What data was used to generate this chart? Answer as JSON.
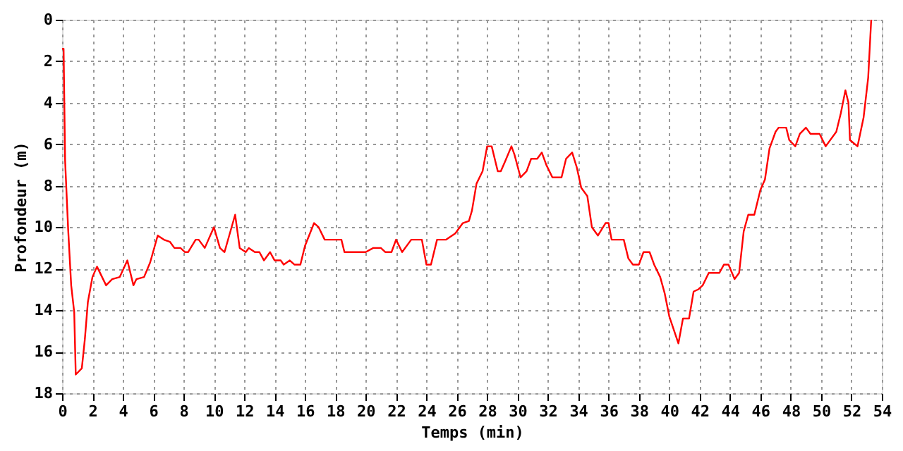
{
  "chart_data": {
    "type": "line",
    "xlabel": "Temps (min)",
    "ylabel": "Profondeur (m)",
    "x": [
      0,
      0.1,
      0.2,
      0.4,
      0.6,
      0.8,
      0.9,
      1.3,
      1.5,
      1.7,
      2.0,
      2.3,
      2.9,
      3.3,
      3.8,
      4.3,
      4.7,
      4.9,
      5.4,
      5.8,
      6.3,
      6.7,
      7.1,
      7.4,
      7.8,
      8.1,
      8.3,
      8.8,
      9.0,
      9.4,
      10.0,
      10.4,
      10.7,
      11.4,
      11.7,
      12.1,
      12.3,
      12.7,
      13.0,
      13.3,
      13.7,
      14.0,
      14.4,
      14.6,
      15.0,
      15.3,
      15.7,
      16.0,
      16.6,
      16.9,
      17.3,
      18.4,
      18.6,
      20.0,
      20.5,
      21.0,
      21.3,
      21.7,
      22.0,
      22.4,
      23.0,
      23.7,
      24.0,
      24.3,
      24.7,
      25.3,
      25.9,
      26.4,
      26.8,
      27.0,
      27.3,
      27.7,
      28.0,
      28.3,
      28.7,
      28.9,
      29.2,
      29.6,
      29.8,
      30.2,
      30.6,
      30.9,
      31.3,
      31.6,
      31.9,
      32.3,
      32.9,
      33.2,
      33.6,
      33.9,
      34.2,
      34.6,
      34.9,
      35.3,
      35.8,
      36.0,
      36.2,
      37.0,
      37.3,
      37.6,
      38.0,
      38.3,
      38.7,
      39.0,
      39.4,
      39.7,
      40.0,
      40.6,
      40.9,
      41.3,
      41.6,
      41.9,
      42.2,
      42.6,
      43.3,
      43.6,
      43.9,
      44.3,
      44.6,
      44.9,
      45.2,
      45.6,
      46.0,
      46.3,
      46.6,
      47.0,
      47.2,
      47.7,
      47.9,
      48.3,
      48.6,
      49.0,
      49.3,
      49.9,
      50.3,
      51.0,
      51.3,
      51.6,
      51.8,
      51.9,
      52.4,
      52.8,
      53.1,
      53.3
    ],
    "series": [
      {
        "color": "#ff0000",
        "values": [
          1.4,
          1.4,
          6.8,
          10.1,
          12.8,
          14.1,
          17.1,
          16.8,
          15.4,
          13.6,
          12.4,
          11.9,
          12.8,
          12.5,
          12.4,
          11.6,
          12.8,
          12.5,
          12.4,
          11.7,
          10.4,
          10.6,
          10.7,
          11.0,
          11.0,
          11.2,
          11.2,
          10.6,
          10.6,
          11.0,
          10.0,
          11.0,
          11.2,
          9.4,
          11.0,
          11.2,
          11.0,
          11.2,
          11.2,
          11.6,
          11.2,
          11.6,
          11.6,
          11.8,
          11.6,
          11.8,
          11.8,
          10.9,
          9.8,
          10.0,
          10.6,
          10.6,
          11.2,
          11.2,
          11.0,
          11.0,
          11.2,
          11.2,
          10.6,
          11.2,
          10.6,
          10.6,
          11.8,
          11.8,
          10.6,
          10.6,
          10.3,
          9.8,
          9.7,
          9.2,
          7.9,
          7.3,
          6.1,
          6.1,
          7.3,
          7.3,
          6.8,
          6.1,
          6.5,
          7.6,
          7.3,
          6.7,
          6.7,
          6.4,
          7.0,
          7.6,
          7.6,
          6.7,
          6.4,
          7.1,
          8.1,
          8.5,
          10.0,
          10.4,
          9.8,
          9.8,
          10.6,
          10.6,
          11.5,
          11.8,
          11.8,
          11.2,
          11.2,
          11.8,
          12.4,
          13.2,
          14.3,
          15.6,
          14.4,
          14.4,
          13.1,
          13.0,
          12.8,
          12.2,
          12.2,
          11.8,
          11.8,
          12.5,
          12.2,
          10.2,
          9.4,
          9.4,
          8.2,
          7.7,
          6.2,
          5.4,
          5.2,
          5.2,
          5.8,
          6.1,
          5.5,
          5.2,
          5.5,
          5.5,
          6.1,
          5.4,
          4.5,
          3.4,
          4.0,
          5.8,
          6.1,
          4.7,
          2.8,
          0
        ]
      }
    ],
    "xlim": [
      0,
      54
    ],
    "xticks": [
      0,
      2,
      4,
      6,
      8,
      10,
      12,
      14,
      16,
      18,
      20,
      22,
      24,
      26,
      28,
      30,
      32,
      34,
      36,
      38,
      40,
      42,
      44,
      46,
      48,
      50,
      52,
      54
    ],
    "ylim": [
      18,
      0
    ],
    "yticks": [
      0,
      2,
      4,
      6,
      8,
      10,
      12,
      14,
      16,
      18
    ],
    "grid": true,
    "legend": false,
    "marker": "none",
    "line_style": "solid"
  }
}
